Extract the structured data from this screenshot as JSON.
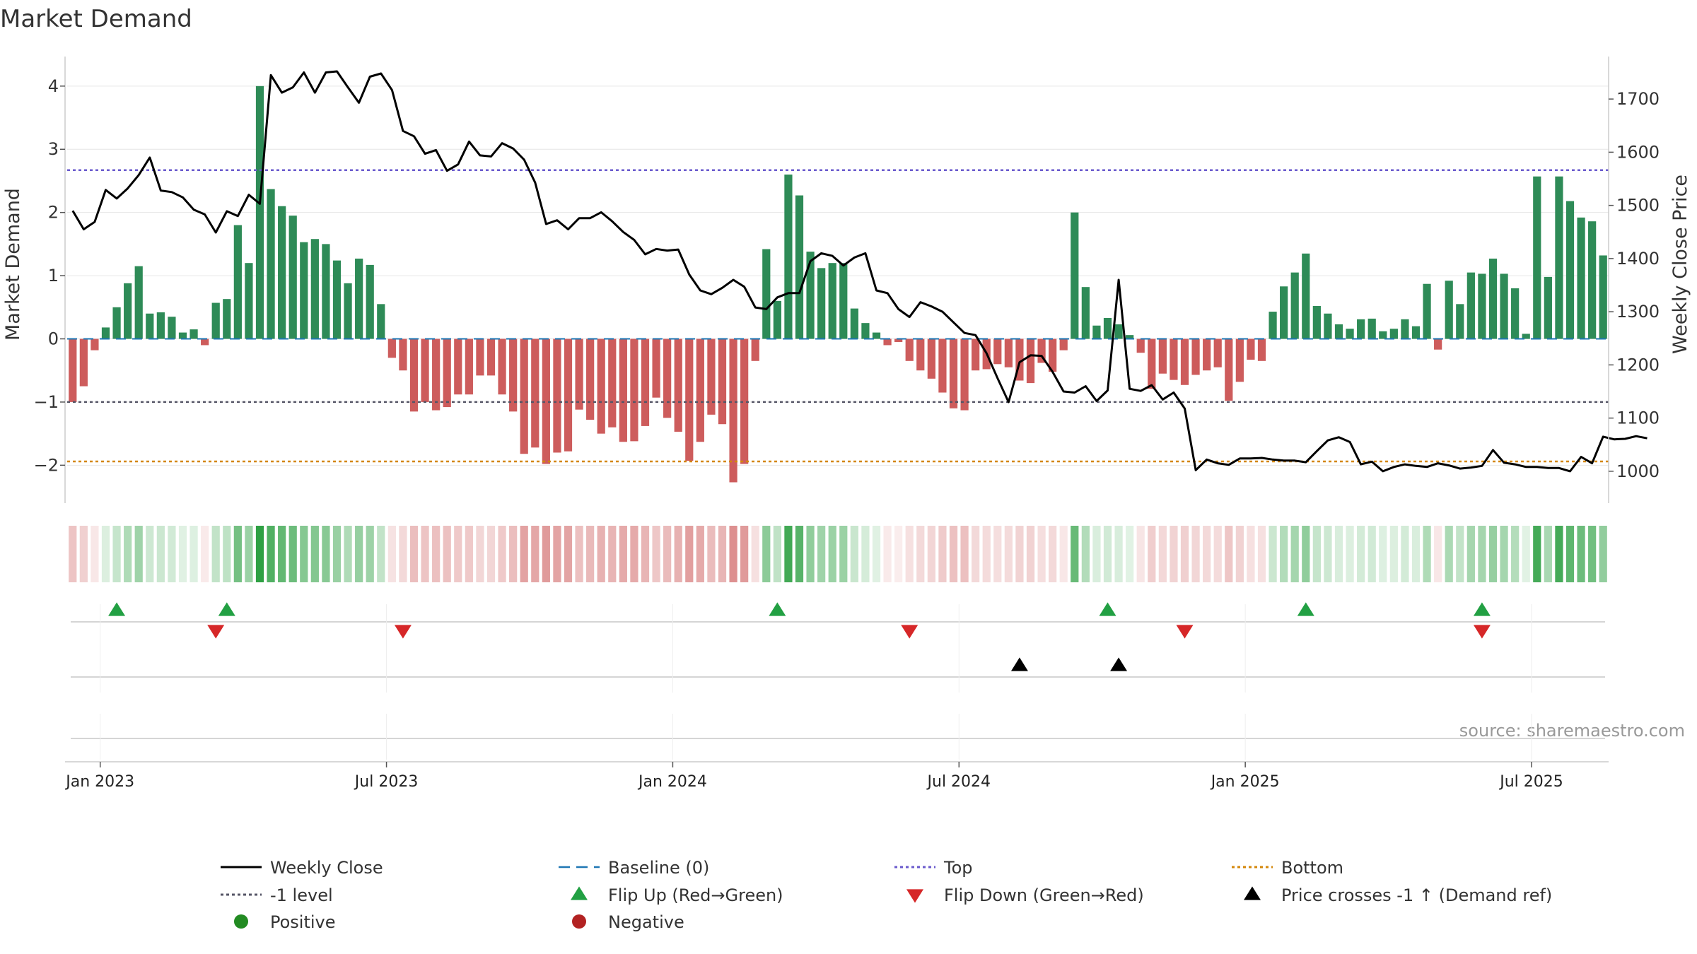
{
  "chart_data": {
    "type": "bar",
    "title": "Market Demand",
    "ylabel": "Market Demand",
    "y2label": "Weekly Close Price",
    "source": "source: sharemaestro.com",
    "ylim": [
      -2.6,
      4.3
    ],
    "y2lim": [
      940,
      1760
    ],
    "yticks": [
      {
        "v": 4,
        "label": "4"
      },
      {
        "v": 3,
        "label": "3"
      },
      {
        "v": 2,
        "label": "2"
      },
      {
        "v": 1,
        "label": "1"
      },
      {
        "v": 0,
        "label": "0"
      },
      {
        "v": -1,
        "label": "−1"
      },
      {
        "v": -2,
        "label": "−2"
      }
    ],
    "y2ticks": [
      {
        "v": 1700,
        "label": "1700"
      },
      {
        "v": 1600,
        "label": "1600"
      },
      {
        "v": 1500,
        "label": "1500"
      },
      {
        "v": 1400,
        "label": "1400"
      },
      {
        "v": 1300,
        "label": "1300"
      },
      {
        "v": 1200,
        "label": "1200"
      },
      {
        "v": 1100,
        "label": "1100"
      },
      {
        "v": 1000,
        "label": "1000"
      }
    ],
    "xticks": [
      {
        "i": 2.5,
        "label": "Jan 2023"
      },
      {
        "i": 28.5,
        "label": "Jul 2023"
      },
      {
        "i": 54.5,
        "label": "Jan 2024"
      },
      {
        "i": 80.5,
        "label": "Jul 2024"
      },
      {
        "i": 106.5,
        "label": "Jan 2025"
      },
      {
        "i": 132.5,
        "label": "Jul 2025"
      }
    ],
    "reference_lines": {
      "top": 2.67,
      "bottom": -1.94,
      "minus_one": -1,
      "baseline": 0
    },
    "demand": [
      -1.0,
      -0.75,
      -0.18,
      0.18,
      0.5,
      0.88,
      1.15,
      0.4,
      0.42,
      0.35,
      0.1,
      0.15,
      -0.1,
      0.57,
      0.63,
      1.8,
      1.2,
      4.0,
      2.37,
      2.1,
      1.95,
      1.53,
      1.58,
      1.5,
      1.24,
      0.88,
      1.27,
      1.17,
      0.55,
      -0.3,
      -0.5,
      -1.15,
      -1.0,
      -1.13,
      -1.08,
      -0.88,
      -0.88,
      -0.58,
      -0.58,
      -0.88,
      -1.15,
      -1.82,
      -1.72,
      -1.98,
      -1.8,
      -1.78,
      -1.12,
      -1.28,
      -1.5,
      -1.4,
      -1.63,
      -1.62,
      -1.38,
      -0.93,
      -1.25,
      -1.47,
      -1.93,
      -1.63,
      -1.2,
      -1.35,
      -2.27,
      -1.98,
      -0.35,
      1.42,
      0.6,
      2.6,
      2.27,
      1.38,
      1.12,
      1.2,
      1.2,
      0.48,
      0.25,
      0.1,
      -0.1,
      -0.05,
      -0.35,
      -0.5,
      -0.63,
      -0.85,
      -1.1,
      -1.13,
      -0.5,
      -0.48,
      -0.4,
      -0.45,
      -0.66,
      -0.7,
      -0.38,
      -0.52,
      -0.18,
      2.0,
      0.82,
      0.21,
      0.33,
      0.23,
      0.06,
      -0.22,
      -0.79,
      -0.55,
      -0.65,
      -0.73,
      -0.57,
      -0.5,
      -0.45,
      -0.98,
      -0.68,
      -0.33,
      -0.35,
      0.43,
      0.83,
      1.05,
      1.35,
      0.52,
      0.4,
      0.23,
      0.16,
      0.31,
      0.32,
      0.12,
      0.16,
      0.31,
      0.2,
      0.87,
      -0.17,
      0.92,
      0.55,
      1.05,
      1.03,
      1.27,
      1.03,
      0.8,
      0.08,
      2.57,
      0.98,
      2.57,
      2.18,
      1.92,
      1.86,
      1.32
    ],
    "close": [
      1490,
      1455,
      1469,
      1529,
      1513,
      1532,
      1557,
      1590,
      1528,
      1525,
      1515,
      1492,
      1483,
      1449,
      1489,
      1480,
      1520,
      1503,
      1745,
      1712,
      1722,
      1750,
      1712,
      1750,
      1752,
      1722,
      1693,
      1742,
      1748,
      1717,
      1640,
      1630,
      1597,
      1604,
      1565,
      1577,
      1620,
      1594,
      1592,
      1617,
      1607,
      1586,
      1543,
      1465,
      1472,
      1455,
      1476,
      1476,
      1487,
      1470,
      1450,
      1435,
      1408,
      1418,
      1415,
      1417,
      1370,
      1340,
      1333,
      1345,
      1360,
      1347,
      1308,
      1305,
      1327,
      1335,
      1335,
      1395,
      1410,
      1405,
      1387,
      1402,
      1410,
      1340,
      1335,
      1305,
      1290,
      1318,
      1310,
      1300,
      1280,
      1260,
      1256,
      1222,
      1175,
      1130,
      1205,
      1218,
      1217,
      1187,
      1150,
      1148,
      1160,
      1132,
      1152,
      1360,
      1155,
      1151,
      1162,
      1135,
      1148,
      1118,
      1002,
      1022,
      1015,
      1012,
      1024,
      1024,
      1025,
      1022,
      1020,
      1020,
      1017,
      1038,
      1058,
      1064,
      1055,
      1013,
      1018,
      1000,
      1008,
      1013,
      1010,
      1008,
      1015,
      1011,
      1005,
      1007,
      1010,
      1040,
      1016,
      1013,
      1008,
      1008,
      1006,
      1006,
      1000,
      1027,
      1015,
      1065,
      1060,
      1061,
      1066,
      1062
    ],
    "flip_up": [
      4,
      14,
      64,
      94,
      112,
      128
    ],
    "flip_down": [
      13,
      30,
      76,
      101,
      128
    ],
    "price_crosses": [
      86,
      95
    ],
    "legend": [
      {
        "label": "Weekly Close",
        "kind": "line",
        "color": "#000000"
      },
      {
        "label": "Baseline (0)",
        "kind": "dash",
        "color": "#1f77b4"
      },
      {
        "label": "Top",
        "kind": "dot",
        "color": "#6a5acd"
      },
      {
        "label": "Bottom",
        "kind": "dot",
        "color": "#d4870a"
      },
      {
        "label": "-1 level",
        "kind": "dot",
        "color": "#555566"
      },
      {
        "label": "Flip Up (Red→Green)",
        "kind": "tri-up",
        "color": "#22a043"
      },
      {
        "label": "Flip Down (Green→Red)",
        "kind": "tri-down",
        "color": "#d62728"
      },
      {
        "label": "Price crosses -1 ↑ (Demand ref)",
        "kind": "tri-up",
        "color": "#000000"
      },
      {
        "label": "Positive",
        "kind": "circle",
        "color": "#228b22"
      },
      {
        "label": "Negative",
        "kind": "circle",
        "color": "#b22222"
      }
    ],
    "colors": {
      "positive": "#2e8b57",
      "negative": "#cd5c5c",
      "line": "#000000",
      "top": "#6a5acd",
      "bottom": "#d4870a",
      "minus_one": "#555566",
      "baseline": "#1f77b4",
      "flip_up": "#22a043",
      "flip_down": "#d62728",
      "grid": "#e6e6e6",
      "axis": "#cccccc"
    }
  }
}
